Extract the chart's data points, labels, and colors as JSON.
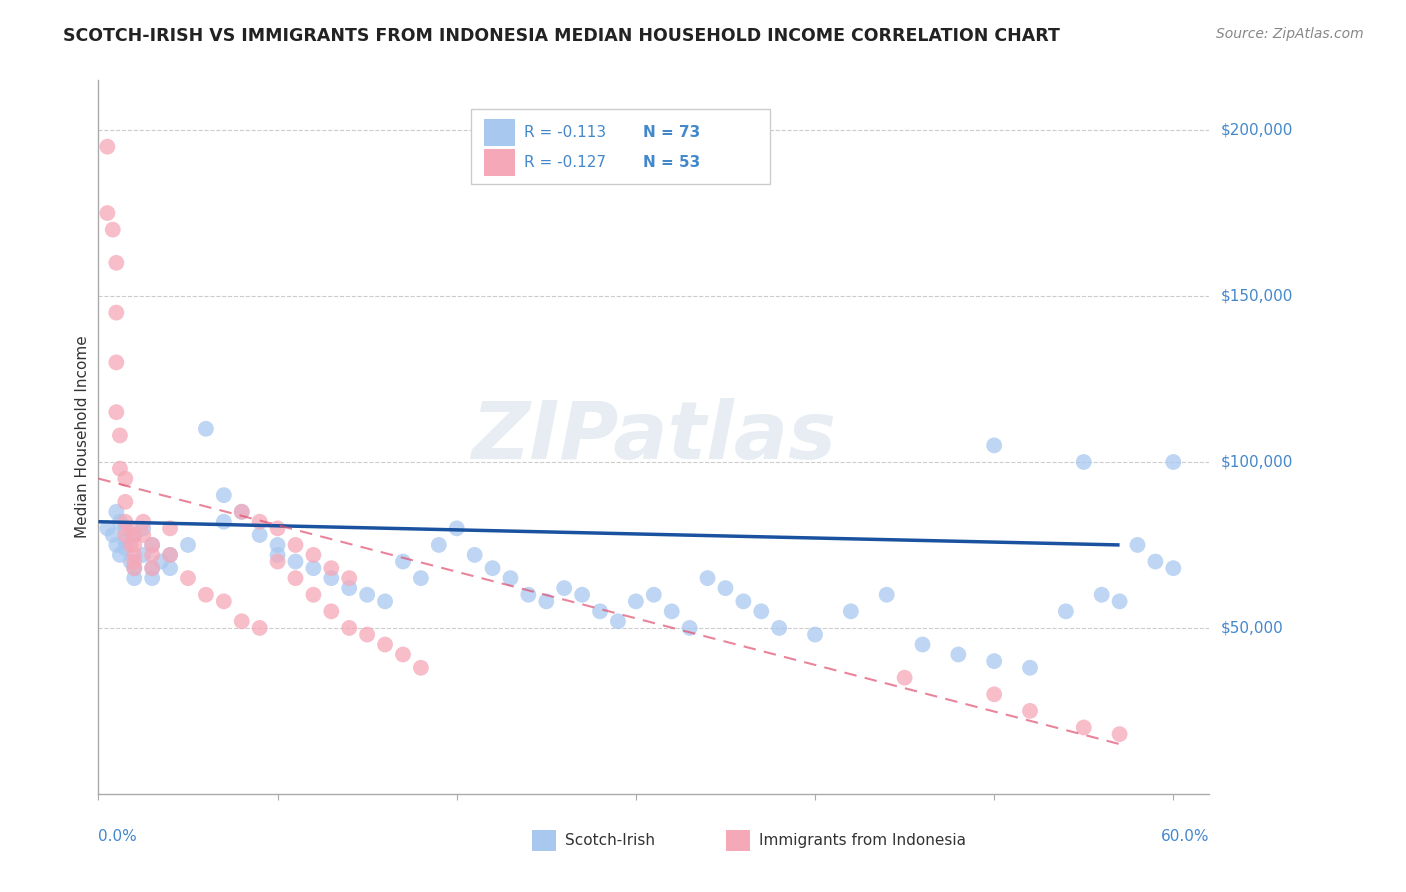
{
  "title": "SCOTCH-IRISH VS IMMIGRANTS FROM INDONESIA MEDIAN HOUSEHOLD INCOME CORRELATION CHART",
  "source": "Source: ZipAtlas.com",
  "ylabel": "Median Household Income",
  "legend_blue_label": "Scotch-Irish",
  "legend_pink_label": "Immigrants from Indonesia",
  "legend_blue_r": "R = -0.113",
  "legend_blue_n": "N = 73",
  "legend_pink_r": "R = -0.127",
  "legend_pink_n": "N = 53",
  "x_lim": [
    0.0,
    0.62
  ],
  "y_lim": [
    0,
    215000
  ],
  "watermark": "ZIPatlas",
  "blue_color": "#a8c8f0",
  "pink_color": "#f5a8b8",
  "blue_line_color": "#1a52a0",
  "pink_line_color": "#e05070",
  "right_label_color": "#4488cc",
  "axis_label_color": "#4488cc",
  "blue_scatter_x": [
    0.005,
    0.008,
    0.01,
    0.01,
    0.012,
    0.012,
    0.015,
    0.015,
    0.015,
    0.018,
    0.02,
    0.02,
    0.02,
    0.025,
    0.025,
    0.03,
    0.03,
    0.03,
    0.035,
    0.04,
    0.04,
    0.05,
    0.06,
    0.07,
    0.07,
    0.08,
    0.09,
    0.1,
    0.1,
    0.11,
    0.12,
    0.13,
    0.14,
    0.15,
    0.16,
    0.17,
    0.18,
    0.19,
    0.2,
    0.21,
    0.22,
    0.23,
    0.24,
    0.25,
    0.26,
    0.27,
    0.28,
    0.29,
    0.3,
    0.31,
    0.32,
    0.33,
    0.34,
    0.35,
    0.36,
    0.37,
    0.38,
    0.4,
    0.42,
    0.44,
    0.46,
    0.48,
    0.5,
    0.52,
    0.54,
    0.56,
    0.57,
    0.58,
    0.59,
    0.6,
    0.5,
    0.55,
    0.6
  ],
  "blue_scatter_y": [
    80000,
    78000,
    85000,
    75000,
    82000,
    72000,
    80000,
    76000,
    74000,
    70000,
    68000,
    65000,
    78000,
    80000,
    72000,
    75000,
    68000,
    65000,
    70000,
    72000,
    68000,
    75000,
    110000,
    90000,
    82000,
    85000,
    78000,
    75000,
    72000,
    70000,
    68000,
    65000,
    62000,
    60000,
    58000,
    70000,
    65000,
    75000,
    80000,
    72000,
    68000,
    65000,
    60000,
    58000,
    62000,
    60000,
    55000,
    52000,
    58000,
    60000,
    55000,
    50000,
    65000,
    62000,
    58000,
    55000,
    50000,
    48000,
    55000,
    60000,
    45000,
    42000,
    40000,
    38000,
    55000,
    60000,
    58000,
    75000,
    70000,
    68000,
    105000,
    100000,
    100000
  ],
  "pink_scatter_x": [
    0.005,
    0.005,
    0.008,
    0.01,
    0.01,
    0.01,
    0.01,
    0.012,
    0.012,
    0.015,
    0.015,
    0.015,
    0.015,
    0.018,
    0.018,
    0.02,
    0.02,
    0.02,
    0.02,
    0.02,
    0.025,
    0.025,
    0.03,
    0.03,
    0.03,
    0.04,
    0.04,
    0.05,
    0.06,
    0.07,
    0.08,
    0.09,
    0.1,
    0.11,
    0.12,
    0.13,
    0.14,
    0.08,
    0.09,
    0.1,
    0.11,
    0.12,
    0.13,
    0.14,
    0.15,
    0.16,
    0.17,
    0.18,
    0.45,
    0.5,
    0.52,
    0.55,
    0.57
  ],
  "pink_scatter_y": [
    195000,
    175000,
    170000,
    160000,
    145000,
    130000,
    115000,
    108000,
    98000,
    95000,
    88000,
    82000,
    78000,
    80000,
    75000,
    78000,
    75000,
    72000,
    70000,
    68000,
    82000,
    78000,
    75000,
    72000,
    68000,
    80000,
    72000,
    65000,
    60000,
    58000,
    52000,
    50000,
    70000,
    65000,
    60000,
    55000,
    50000,
    85000,
    82000,
    80000,
    75000,
    72000,
    68000,
    65000,
    48000,
    45000,
    42000,
    38000,
    35000,
    30000,
    25000,
    20000,
    18000
  ],
  "blue_line_x0": 0.0,
  "blue_line_y0": 82000,
  "blue_line_x1": 0.57,
  "blue_line_y1": 75000,
  "pink_line_x0": 0.0,
  "pink_line_y0": 95000,
  "pink_line_x1": 0.57,
  "pink_line_y1": 15000
}
